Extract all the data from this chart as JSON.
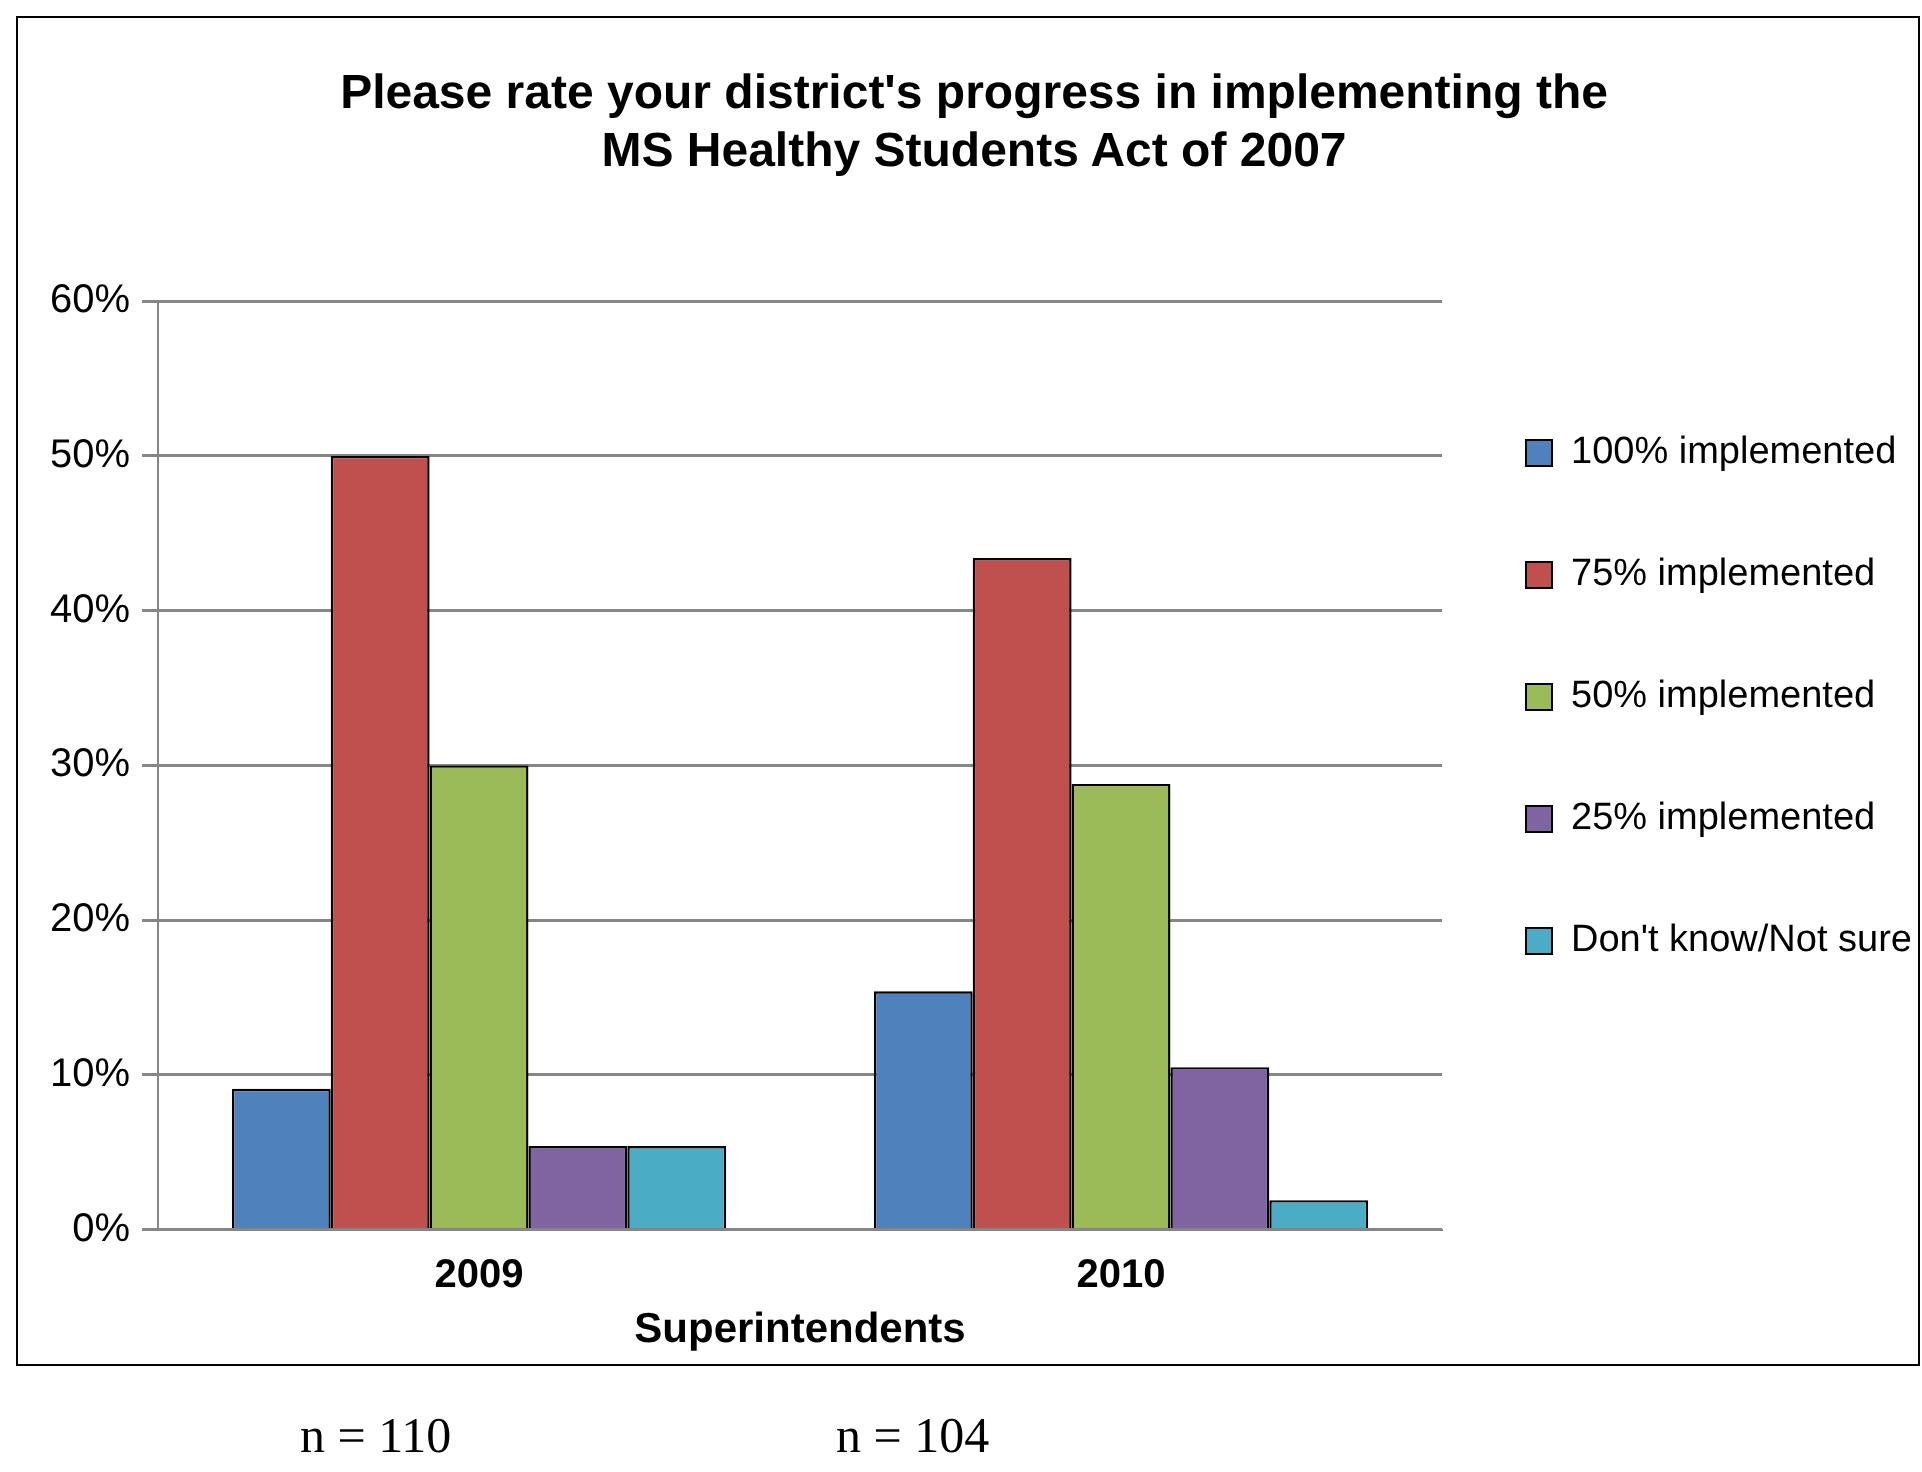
{
  "chart_data": {
    "type": "bar",
    "title": "Please rate your district's progress in implementing the\nMS Healthy Students Act of 2007",
    "xlabel": "Superintendents",
    "categories": [
      "2009",
      "2010"
    ],
    "series": [
      {
        "name": "100% implemented",
        "color": "#4f81bd",
        "values": [
          9.1,
          15.4
        ]
      },
      {
        "name": "75% implemented",
        "color": "#c0504d",
        "values": [
          50,
          43.4
        ]
      },
      {
        "name": "50% implemented",
        "color": "#9bbb59",
        "values": [
          30,
          28.8
        ]
      },
      {
        "name": "25% implemented",
        "color": "#8064a2",
        "values": [
          5.4,
          10.5
        ]
      },
      {
        "name": "Don't know/Not sure",
        "color": "#4bacc6",
        "values": [
          5.4,
          1.9
        ]
      }
    ],
    "ylim": [
      0,
      60
    ],
    "yticks": [
      {
        "value": 0,
        "label": "0%"
      },
      {
        "value": 10,
        "label": "10%"
      },
      {
        "value": 20,
        "label": "20%"
      },
      {
        "value": 30,
        "label": "30%"
      },
      {
        "value": 40,
        "label": "40%"
      },
      {
        "value": 50,
        "label": "50%"
      },
      {
        "value": 60,
        "label": "60%"
      }
    ],
    "grid": "y",
    "legend": "right",
    "annotations": [
      "n = 110",
      "n = 104"
    ]
  }
}
